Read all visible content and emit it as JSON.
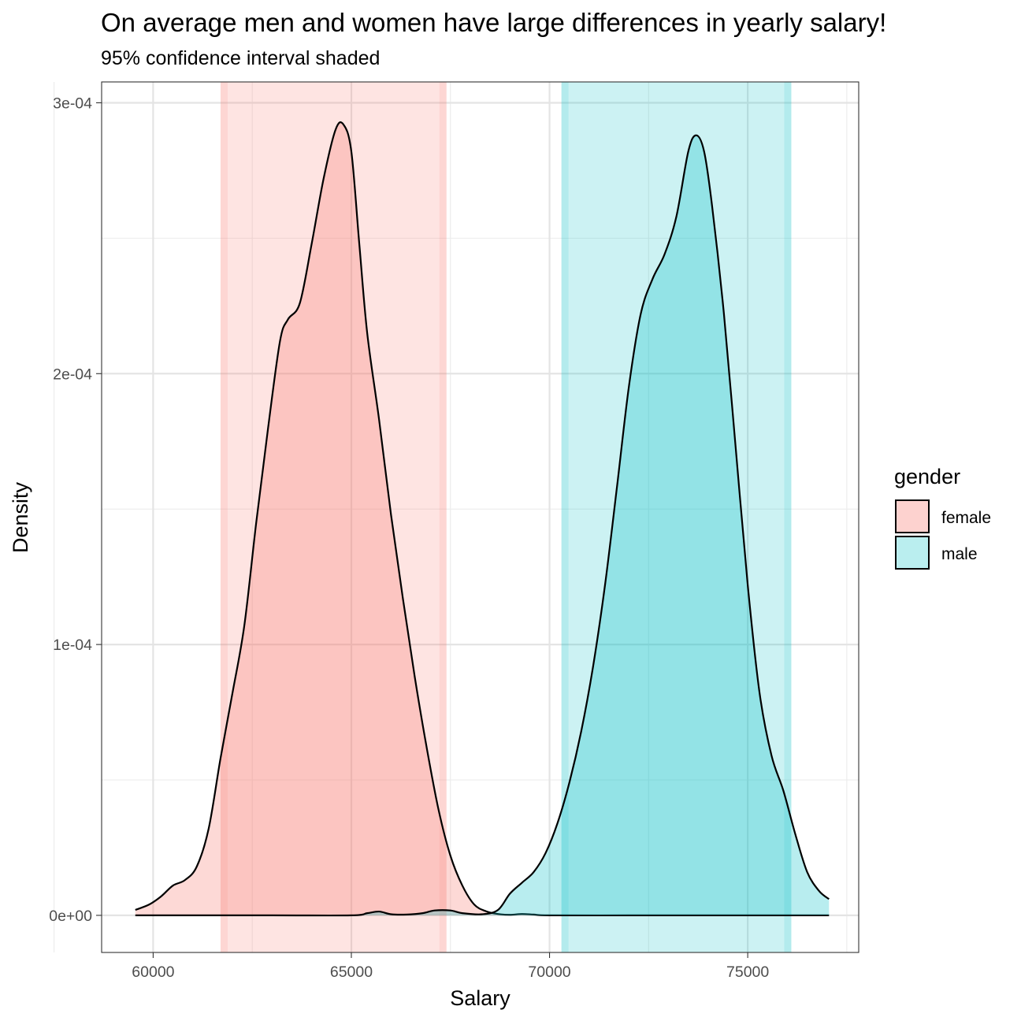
{
  "chart_data": {
    "type": "area",
    "title": "On average men and women have large differences in yearly salary!",
    "subtitle": "95% confidence interval shaded",
    "xlabel": "Salary",
    "ylabel": "Density",
    "xlim": [
      58700,
      77800
    ],
    "ylim": [
      -1.37e-05,
      0.0003077
    ],
    "x_ticks": [
      60000,
      65000,
      70000,
      75000
    ],
    "x_tick_labels": [
      "60000",
      "65000",
      "70000",
      "75000"
    ],
    "y_ticks": [
      0,
      0.0001,
      0.0002,
      0.0003
    ],
    "y_tick_labels": [
      "0e+00",
      "1e-04",
      "2e-04",
      "3e-04"
    ],
    "grid": true,
    "legend": {
      "title": "gender",
      "position": "right"
    },
    "series": [
      {
        "name": "female",
        "color": "#F8766D",
        "ci": [
          61700,
          67400
        ],
        "x": [
          59550,
          59900,
          60200,
          60500,
          60800,
          61100,
          61400,
          61700,
          62000,
          62300,
          62600,
          62900,
          63200,
          63400,
          63700,
          64000,
          64300,
          64600,
          64800,
          65000,
          65200,
          65400,
          65700,
          66000,
          66300,
          66600,
          66900,
          67200,
          67500,
          67800,
          68100,
          68400,
          68700,
          69000,
          69300,
          69600,
          70000,
          72000,
          74000,
          77050
        ],
        "y": [
          2e-06,
          4e-06,
          7e-06,
          1.1e-05,
          1.3e-05,
          1.8e-05,
          3.2e-05,
          5.8e-05,
          8.2e-05,
          0.000107,
          0.000145,
          0.00018,
          0.000212,
          0.00022,
          0.000226,
          0.000248,
          0.000272,
          0.00029,
          0.000292,
          0.000282,
          0.000248,
          0.000215,
          0.000183,
          0.000148,
          0.000117,
          8.8e-05,
          6.2e-05,
          3.9e-05,
          2.2e-05,
          1.1e-05,
          4e-06,
          1.5e-06,
          5e-07,
          2e-07,
          5e-07,
          3e-07,
          0.0,
          0.0,
          0.0,
          0.0
        ]
      },
      {
        "name": "male",
        "color": "#00BFC4",
        "ci": [
          70300,
          76100
        ],
        "x": [
          59550,
          63000,
          65000,
          65400,
          65700,
          66000,
          66400,
          66800,
          67100,
          67500,
          67800,
          68300,
          68700,
          69000,
          69300,
          69600,
          69900,
          70200,
          70500,
          70800,
          71100,
          71400,
          71700,
          72000,
          72300,
          72600,
          72900,
          73200,
          73500,
          73700,
          73900,
          74100,
          74400,
          74700,
          75000,
          75300,
          75600,
          75900,
          76200,
          76500,
          76800,
          77050
        ],
        "y": [
          0.0,
          0.0,
          0.0,
          8e-07,
          1.4e-06,
          4e-07,
          3e-07,
          8e-07,
          1.8e-06,
          1.8e-06,
          8e-07,
          4e-07,
          2e-06,
          8e-06,
          1.2e-05,
          1.6e-05,
          2.3e-05,
          3.4e-05,
          4.9e-05,
          6.8e-05,
          9.2e-05,
          0.000122,
          0.000158,
          0.000195,
          0.000222,
          0.000235,
          0.000244,
          0.000258,
          0.000282,
          0.000288,
          0.000282,
          0.000262,
          0.000222,
          0.000172,
          0.000122,
          8.2e-05,
          5.9e-05,
          4.6e-05,
          3e-05,
          1.6e-05,
          9e-06,
          6e-06
        ]
      }
    ]
  }
}
